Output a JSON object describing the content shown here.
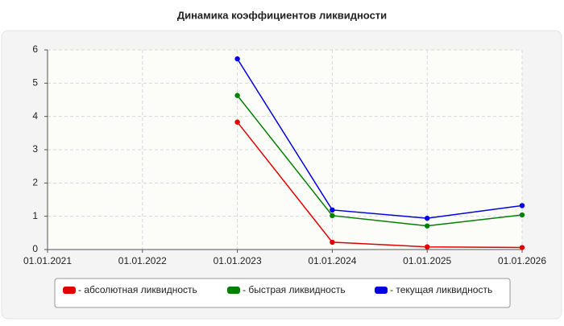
{
  "chart_data": {
    "type": "line",
    "title": "Динамика коэффициентов ликвидности",
    "categories": [
      "01.01.2021",
      "01.01.2022",
      "01.01.2023",
      "01.01.2024",
      "01.01.2025",
      "01.01.2026"
    ],
    "series": [
      {
        "name": "- абсолютная ликвидность",
        "color": "#e00000",
        "values": [
          null,
          null,
          3.83,
          0.22,
          0.08,
          0.06
        ]
      },
      {
        "name": "- быстрая ликвидность",
        "color": "#008000",
        "values": [
          null,
          null,
          4.63,
          1.02,
          0.71,
          1.04
        ]
      },
      {
        "name": "- текущая ликвидность",
        "color": "#0000e0",
        "values": [
          null,
          null,
          5.73,
          1.19,
          0.94,
          1.32
        ]
      }
    ],
    "ylim": [
      0,
      6
    ],
    "yticks": [
      0,
      1,
      2,
      3,
      4,
      5,
      6
    ],
    "grid": true
  }
}
